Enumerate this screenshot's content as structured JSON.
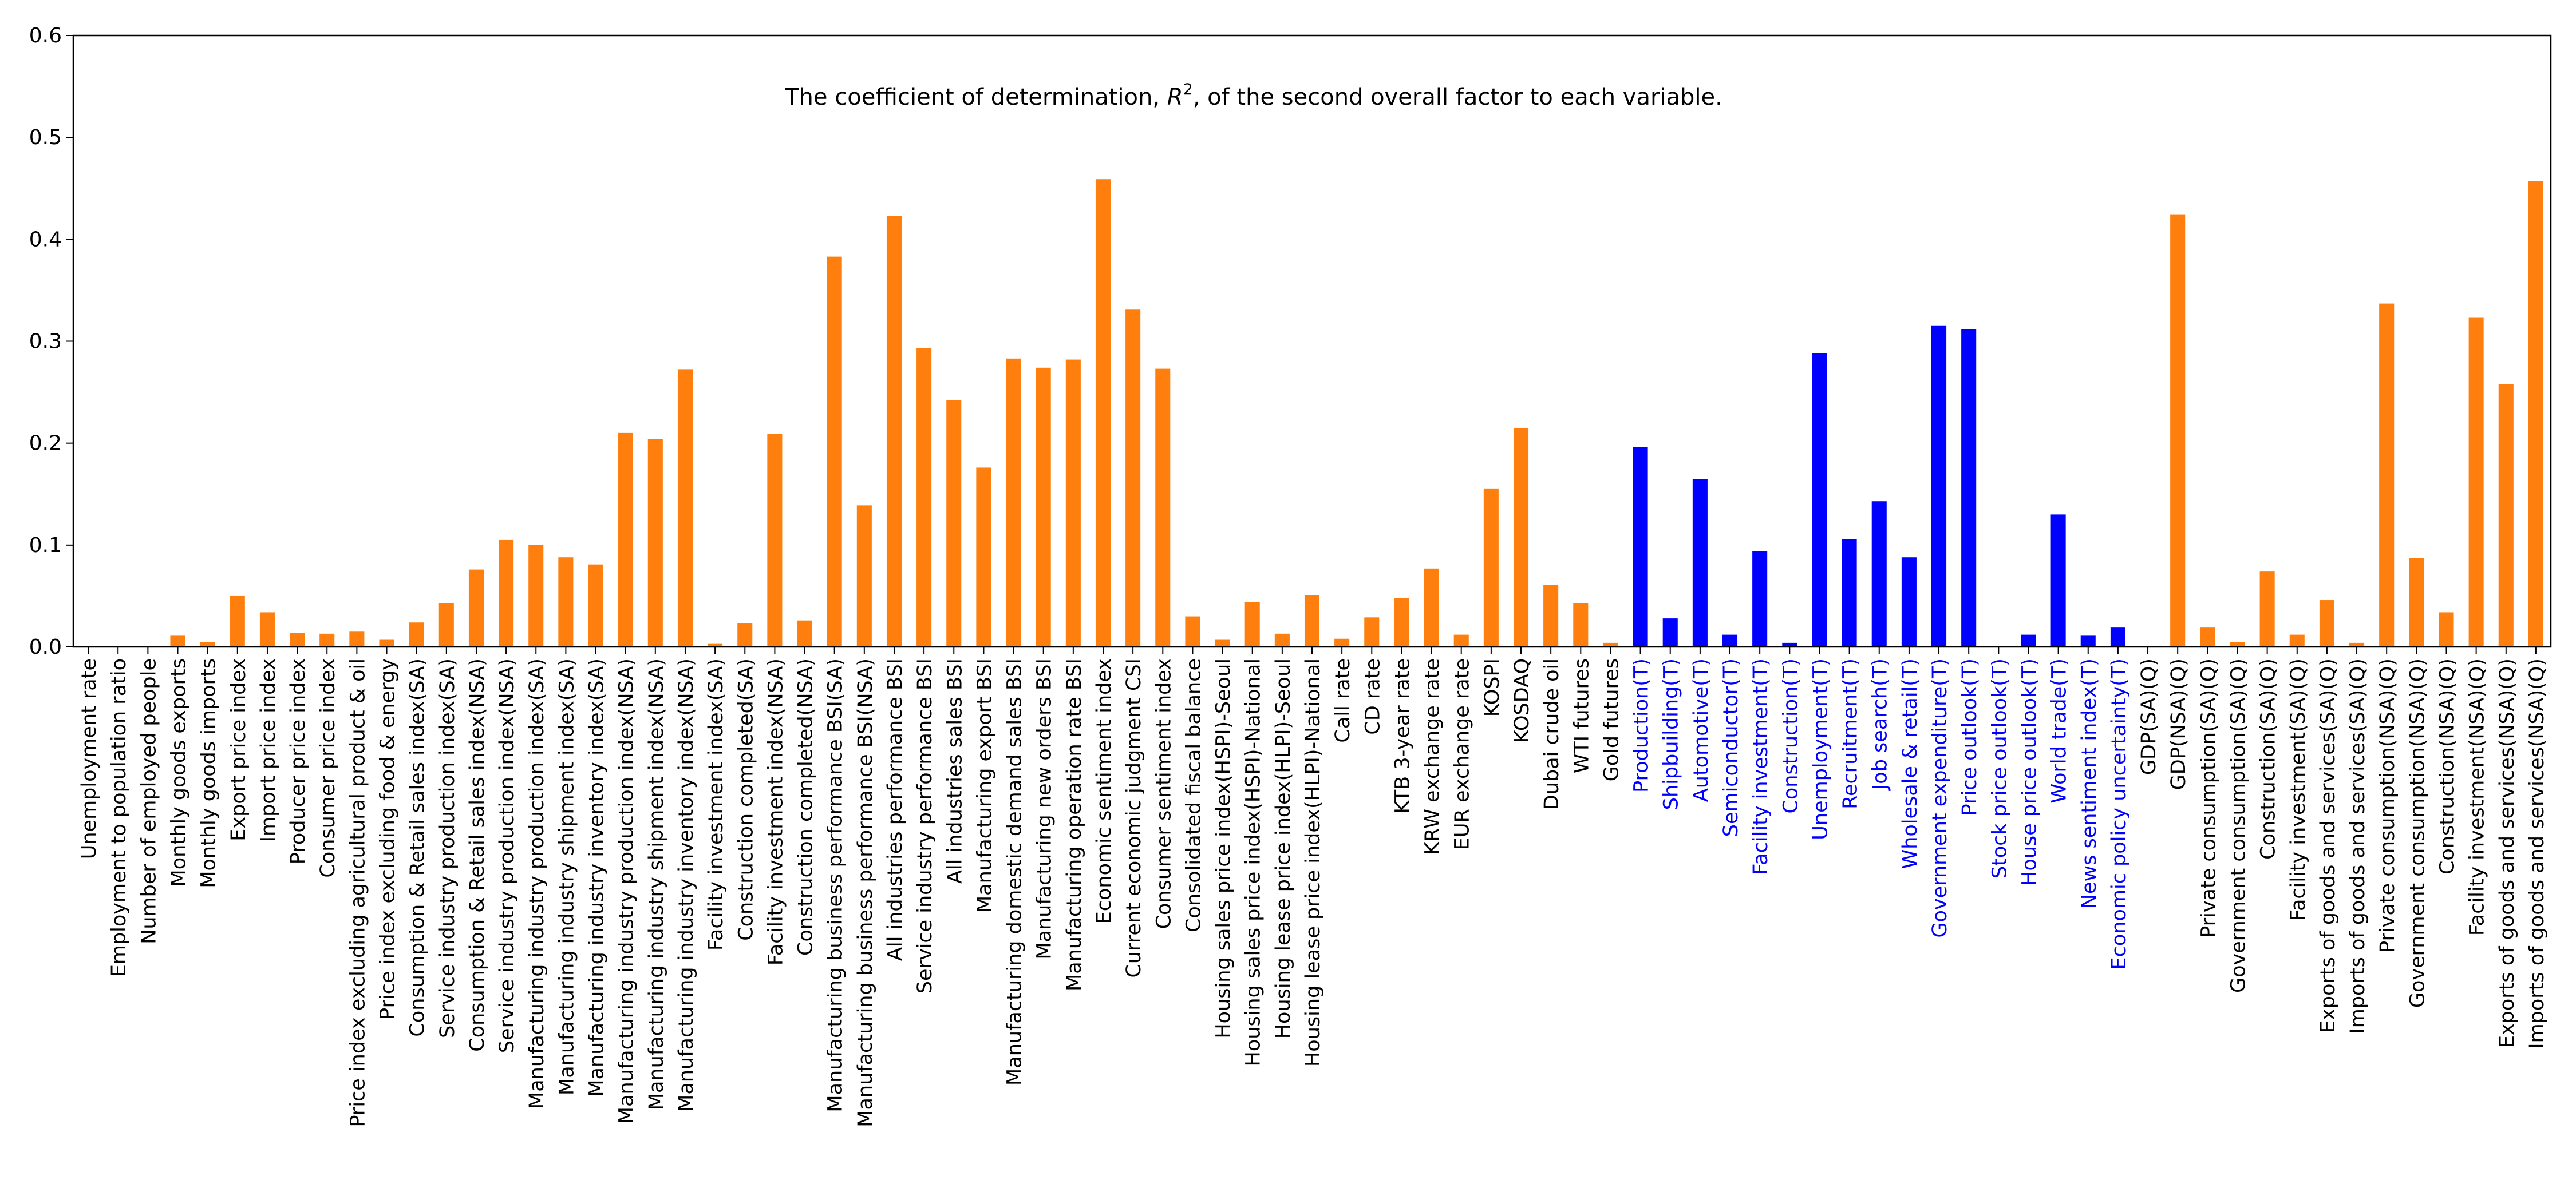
{
  "chart_data": {
    "type": "bar",
    "title_prefix": "The coefficient of determination, ",
    "title_symbol": "R",
    "title_superscript": "2",
    "title_suffix": ", of the second overall factor to each variable.",
    "xlabel": "",
    "ylabel": "",
    "ylim": [
      0,
      0.6
    ],
    "yticks": [
      "0.0",
      "0.1",
      "0.2",
      "0.3",
      "0.4",
      "0.5",
      "0.6"
    ],
    "grid": false,
    "legend": "none",
    "colors": {
      "default": "#ff7f0e",
      "highlight": "#0000ff",
      "axis": "#000000"
    },
    "categories": [
      "Unemployment rate",
      "Employment to population ratio",
      "Number of employed people",
      "Monthly goods exports",
      "Monthly goods imports",
      "Export price index",
      "Import price index",
      "Producer price index",
      "Consumer price index",
      "Price index excluding agricultural product & oil",
      "Price index excluding food & energy",
      "Consumption & Retail sales index(SA)",
      "Service industry production index(SA)",
      "Consumption & Retail sales index(NSA)",
      "Service industry production index(NSA)",
      "Manufacturing industry production index(SA)",
      "Manufacturing industry shipment index(SA)",
      "Manufacturing industry inventory index(SA)",
      "Manufacturing industry production index(NSA)",
      "Manufacturing industry shipment index(NSA)",
      "Manufacturing industry inventory index(NSA)",
      "Facility investment index(SA)",
      "Construction completed(SA)",
      "Facility investment index(NSA)",
      "Construction completed(NSA)",
      "Manufacturing business performance BSI(SA)",
      "Manufacturing business performance BSI(NSA)",
      "All industries performance BSI",
      "Service industry performance BSI",
      "All industries sales BSI",
      "Manufacturing export BSI",
      "Manufacturing domestic demand sales BSI",
      "Manufacturing new orders BSI",
      "Manufacturing operation rate BSI",
      "Economic sentiment index",
      "Current economic judgment CSI",
      "Consumer sentiment index",
      "Consolidated fiscal balance",
      "Housing sales price index(HSPI)-Seoul",
      "Housing sales price index(HSPI)-National",
      "Housing lease price index(HLPI)-Seoul",
      "Housing lease price index(HLPI)-National",
      "Call rate",
      "CD rate",
      "KTB 3-year rate",
      "KRW exchange rate",
      "EUR exchange rate",
      "KOSPI",
      "KOSDAQ",
      "Dubai crude oil",
      "WTI futures",
      "Gold futures",
      "Production(T)",
      "Shipbuilding(T)",
      "Automotive(T)",
      "Semiconductor(T)",
      "Facility investment(T)",
      "Construction(T)",
      "Unemployment(T)",
      "Recruitment(T)",
      "Job search(T)",
      "Wholesale & retail(T)",
      "Government expenditure(T)",
      "Price outlook(T)",
      "Stock price outlook(T)",
      "House price outlook(T)",
      "World trade(T)",
      "News sentiment index(T)",
      "Economic policy uncertainty(T)",
      "GDP(SA)(Q)",
      "GDP(NSA)(Q)",
      "Private consumption(SA)(Q)",
      "Government consumption(SA)(Q)",
      "Construction(SA)(Q)",
      "Facility investment(SA)(Q)",
      "Exports of goods and services(SA)(Q)",
      "Imports of goods and services(SA)(Q)",
      "Private consumption(NSA)(Q)",
      "Government consumption(NSA)(Q)",
      "Construction(NSA)(Q)",
      "Facility investment(NSA)(Q)",
      "Exports of goods and services(NSA)(Q)",
      "Imports of goods and services(NSA)(Q)"
    ],
    "values": [
      0.0,
      0.0,
      0.0,
      0.011,
      0.005,
      0.05,
      0.034,
      0.014,
      0.013,
      0.015,
      0.007,
      0.024,
      0.043,
      0.076,
      0.105,
      0.1,
      0.088,
      0.081,
      0.21,
      0.204,
      0.272,
      0.003,
      0.023,
      0.209,
      0.026,
      0.383,
      0.139,
      0.423,
      0.293,
      0.242,
      0.176,
      0.283,
      0.274,
      0.282,
      0.459,
      0.331,
      0.273,
      0.03,
      0.007,
      0.044,
      0.013,
      0.051,
      0.008,
      0.029,
      0.048,
      0.077,
      0.012,
      0.155,
      0.215,
      0.061,
      0.043,
      0.004,
      0.196,
      0.028,
      0.165,
      0.012,
      0.094,
      0.004,
      0.288,
      0.106,
      0.143,
      0.088,
      0.315,
      0.312,
      0.0,
      0.012,
      0.13,
      0.011,
      0.019,
      0.0,
      0.424,
      0.019,
      0.005,
      0.074,
      0.012,
      0.046,
      0.004,
      0.337,
      0.087,
      0.034,
      0.323,
      0.258,
      0.457
    ],
    "highlight": [
      false,
      false,
      false,
      false,
      false,
      false,
      false,
      false,
      false,
      false,
      false,
      false,
      false,
      false,
      false,
      false,
      false,
      false,
      false,
      false,
      false,
      false,
      false,
      false,
      false,
      false,
      false,
      false,
      false,
      false,
      false,
      false,
      false,
      false,
      false,
      false,
      false,
      false,
      false,
      false,
      false,
      false,
      false,
      false,
      false,
      false,
      false,
      false,
      false,
      false,
      false,
      false,
      true,
      true,
      true,
      true,
      true,
      true,
      true,
      true,
      true,
      true,
      true,
      true,
      true,
      true,
      true,
      true,
      true,
      false,
      false,
      false,
      false,
      false,
      false,
      false,
      false,
      false,
      false,
      false,
      false,
      false,
      false
    ]
  }
}
